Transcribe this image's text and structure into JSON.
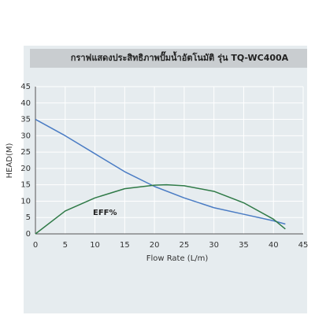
{
  "chart_data": {
    "type": "line",
    "title": "กราฟแสดงประสิทธิภาพปั๊มน้ำอัตโนมัติ รุ่น TQ-WC400A",
    "xlabel": "Flow Rate (L/m)",
    "ylabel": "HEAD(M)",
    "annotation": "EFF%",
    "series": [
      {
        "name": "HEAD",
        "color": "#4a7cc4",
        "x": [
          0,
          5,
          10,
          15,
          20,
          25,
          30,
          35,
          40,
          42
        ],
        "values": [
          35,
          30,
          24.5,
          19,
          14.5,
          11,
          8,
          6,
          4,
          3
        ]
      },
      {
        "name": "EFF%",
        "color": "#2f7a47",
        "x": [
          0,
          5,
          10,
          15,
          20,
          22,
          25,
          30,
          35,
          40,
          42
        ],
        "values": [
          0,
          7,
          11,
          13.8,
          14.9,
          15,
          14.7,
          13,
          9.5,
          4.5,
          1.5
        ]
      }
    ],
    "xlim": [
      0,
      45
    ],
    "xticks": [
      0,
      5,
      10,
      15,
      20,
      25,
      30,
      35,
      40,
      45
    ],
    "ylim": [
      0,
      45
    ],
    "yticks": [
      0,
      5,
      10,
      15,
      20,
      25,
      30,
      35,
      40,
      45
    ],
    "grid": true
  }
}
